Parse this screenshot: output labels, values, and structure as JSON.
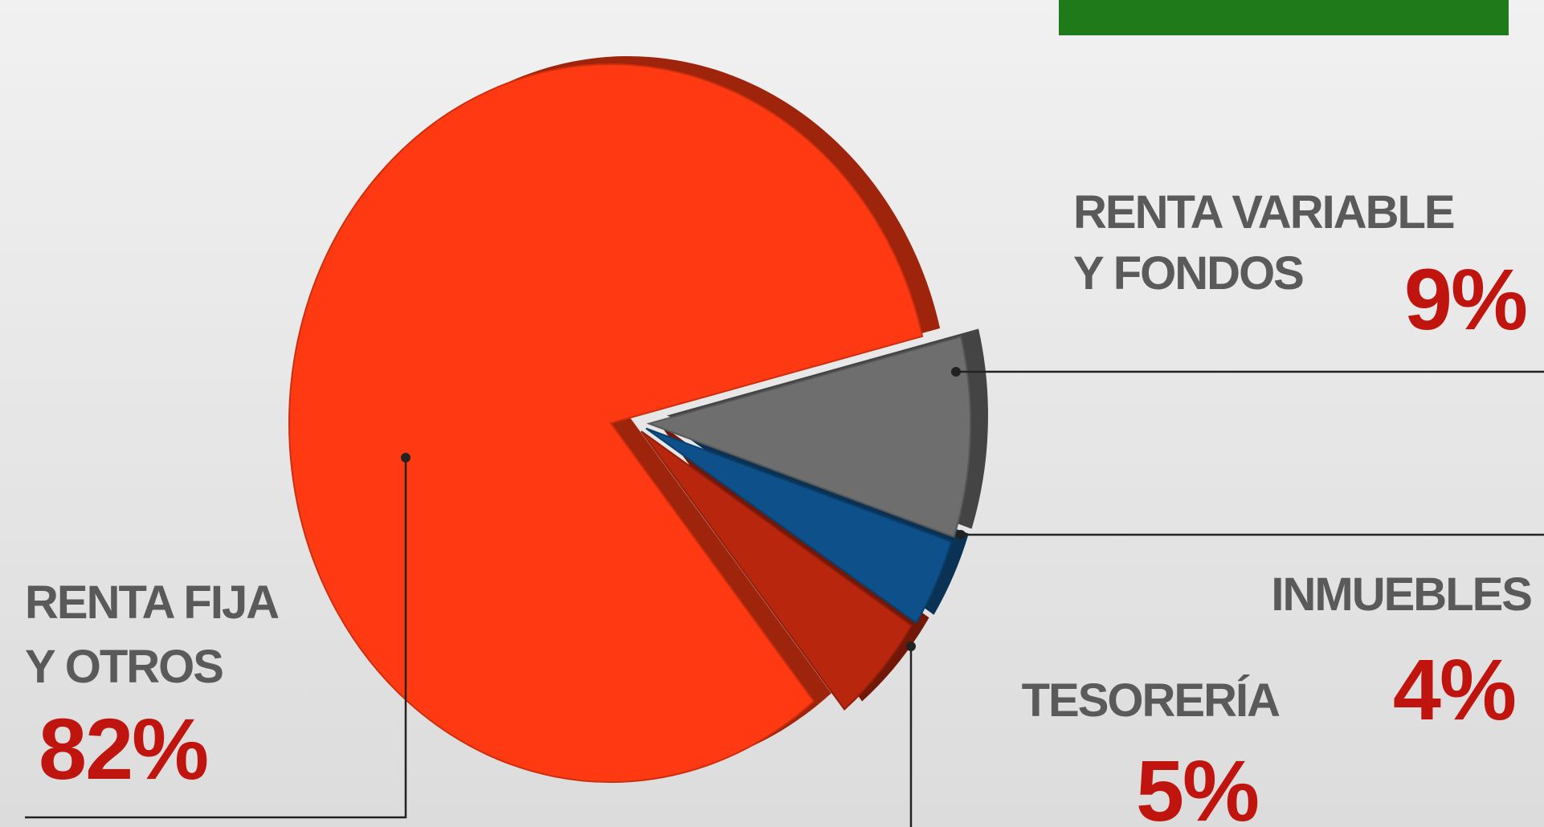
{
  "chart_data": {
    "type": "pie",
    "categories": [
      [
        "RENTA VARIABLE",
        "Y FONDOS"
      ],
      [
        "INMUEBLES"
      ],
      [
        "TESORERÍA"
      ],
      [
        "RENTA FIJA",
        "Y OTROS"
      ]
    ],
    "values": [
      9,
      4,
      5,
      82
    ],
    "value_labels": [
      "9%",
      "4%",
      "5%",
      "82%"
    ],
    "colors": [
      "#6e6e6e",
      "#0e5089",
      "#b8260e",
      "#ff3a12"
    ]
  }
}
